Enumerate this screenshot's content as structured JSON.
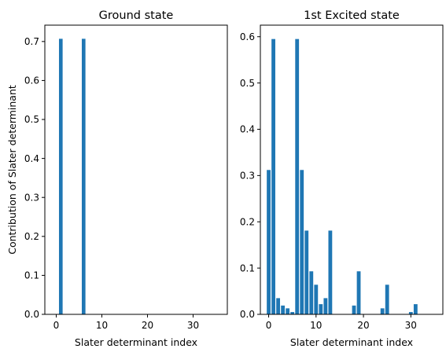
{
  "chart_data": [
    {
      "type": "bar",
      "title": "Ground state",
      "xlabel": "Slater determinant index",
      "ylabel": "Contribution of Slater determinant",
      "x": [
        0,
        1,
        2,
        3,
        4,
        5,
        6,
        7,
        8,
        9,
        10,
        11,
        12,
        13,
        14,
        15,
        16,
        17,
        18,
        19,
        20,
        21,
        22,
        23,
        24,
        25,
        26,
        27,
        28,
        29,
        30,
        31,
        32,
        33,
        34,
        35
      ],
      "values": [
        0,
        0.707,
        0,
        0,
        0,
        0,
        0.707,
        0,
        0,
        0,
        0,
        0,
        0,
        0,
        0,
        0,
        0,
        0,
        0,
        0,
        0,
        0,
        0,
        0,
        0,
        0,
        0,
        0,
        0,
        0,
        0,
        0,
        0,
        0,
        0,
        0
      ],
      "xlim": [
        -2.5,
        37.5
      ],
      "ylim": [
        0,
        0.742
      ],
      "xticks": [
        0,
        10,
        20,
        30
      ],
      "yticks": [
        0.0,
        0.1,
        0.2,
        0.3,
        0.4,
        0.5,
        0.6,
        0.7
      ],
      "bar_color": "#1f77b4"
    },
    {
      "type": "bar",
      "title": "1st Excited state",
      "xlabel": "Slater determinant index",
      "ylabel": "",
      "x": [
        0,
        1,
        2,
        3,
        4,
        5,
        6,
        7,
        8,
        9,
        10,
        11,
        12,
        13,
        14,
        15,
        16,
        17,
        18,
        19,
        20,
        21,
        22,
        23,
        24,
        25,
        26,
        27,
        28,
        29,
        30,
        31,
        32,
        33,
        34,
        35
      ],
      "values": [
        0.312,
        0.595,
        0.035,
        0.019,
        0.013,
        0.005,
        0.595,
        0.312,
        0.181,
        0.093,
        0.064,
        0.022,
        0.035,
        0.181,
        0,
        0,
        0,
        0,
        0.019,
        0.093,
        0,
        0,
        0,
        0,
        0.013,
        0.064,
        0,
        0,
        0,
        0,
        0.005,
        0.022,
        0,
        0,
        0,
        0
      ],
      "xlim": [
        -1.75,
        36.75
      ],
      "ylim": [
        0,
        0.625
      ],
      "xticks": [
        0,
        10,
        20,
        30
      ],
      "yticks": [
        0.0,
        0.1,
        0.2,
        0.3,
        0.4,
        0.5,
        0.6
      ],
      "bar_color": "#1f77b4"
    }
  ]
}
